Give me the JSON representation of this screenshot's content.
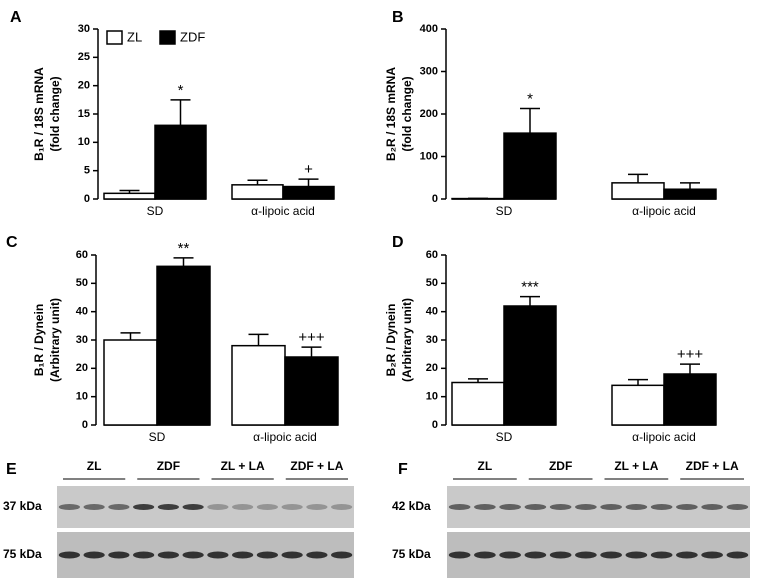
{
  "chart_data": [
    {
      "type": "bar",
      "label": "A",
      "ylabel": [
        "B₁R / 18S mRNA",
        "(fold change)"
      ],
      "categories": [
        "SD",
        "α-lipoic acid"
      ],
      "series": [
        {
          "name": "ZL",
          "color": "#ffffff",
          "values": [
            1.0,
            2.5
          ],
          "errors": [
            0.5,
            0.8
          ]
        },
        {
          "name": "ZDF",
          "color": "#000000",
          "values": [
            13,
            2.2
          ],
          "errors": [
            4.5,
            1.3
          ],
          "annotations": [
            "*",
            "+"
          ]
        }
      ],
      "ylim": [
        0,
        30
      ],
      "yticks": [
        0,
        5,
        10,
        15,
        20,
        25,
        30
      ],
      "legend": "upper left"
    },
    {
      "type": "bar",
      "label": "B",
      "ylabel": [
        "B₂R / 18S mRNA",
        "(fold change)"
      ],
      "categories": [
        "SD",
        "α-lipoic acid"
      ],
      "series": [
        {
          "name": "ZL",
          "color": "#ffffff",
          "values": [
            1,
            38
          ],
          "errors": [
            0.5,
            20
          ]
        },
        {
          "name": "ZDF",
          "color": "#000000",
          "values": [
            155,
            23
          ],
          "errors": [
            58,
            15
          ],
          "annotations": [
            "*",
            null
          ]
        }
      ],
      "ylim": [
        0,
        400
      ],
      "yticks": [
        0,
        100,
        200,
        300,
        400
      ]
    },
    {
      "type": "bar",
      "label": "C",
      "ylabel": [
        "B₁R / Dynein",
        "(Arbitrary unit)"
      ],
      "categories": [
        "SD",
        "α-lipoic acid"
      ],
      "series": [
        {
          "name": "ZL",
          "color": "#ffffff",
          "values": [
            30,
            28
          ],
          "errors": [
            2.5,
            4
          ]
        },
        {
          "name": "ZDF",
          "color": "#000000",
          "values": [
            56,
            24
          ],
          "errors": [
            3,
            3.5
          ],
          "annotations": [
            "**",
            "+++"
          ]
        }
      ],
      "ylim": [
        0,
        60
      ],
      "yticks": [
        0,
        10,
        20,
        30,
        40,
        50,
        60
      ]
    },
    {
      "type": "bar",
      "label": "D",
      "ylabel": [
        "B₂R / Dynein",
        "(Arbitrary unit)"
      ],
      "categories": [
        "SD",
        "α-lipoic acid"
      ],
      "series": [
        {
          "name": "ZL",
          "color": "#ffffff",
          "values": [
            15,
            14
          ],
          "errors": [
            1.3,
            2
          ]
        },
        {
          "name": "ZDF",
          "color": "#000000",
          "values": [
            42,
            18
          ],
          "errors": [
            3.3,
            3.5
          ],
          "annotations": [
            "***",
            "+++"
          ]
        }
      ],
      "ylim": [
        0,
        60
      ],
      "yticks": [
        0,
        10,
        20,
        30,
        40,
        50,
        60
      ]
    }
  ],
  "blots": [
    {
      "label": "E",
      "lanes": [
        "ZL",
        "ZDF",
        "ZL + LA",
        "ZDF + LA"
      ],
      "markers": [
        "37 kDa",
        "75 kDa"
      ]
    },
    {
      "label": "F",
      "lanes": [
        "ZL",
        "ZDF",
        "ZL + LA",
        "ZDF + LA"
      ],
      "markers": [
        "42 kDa",
        "75 kDa"
      ]
    }
  ]
}
